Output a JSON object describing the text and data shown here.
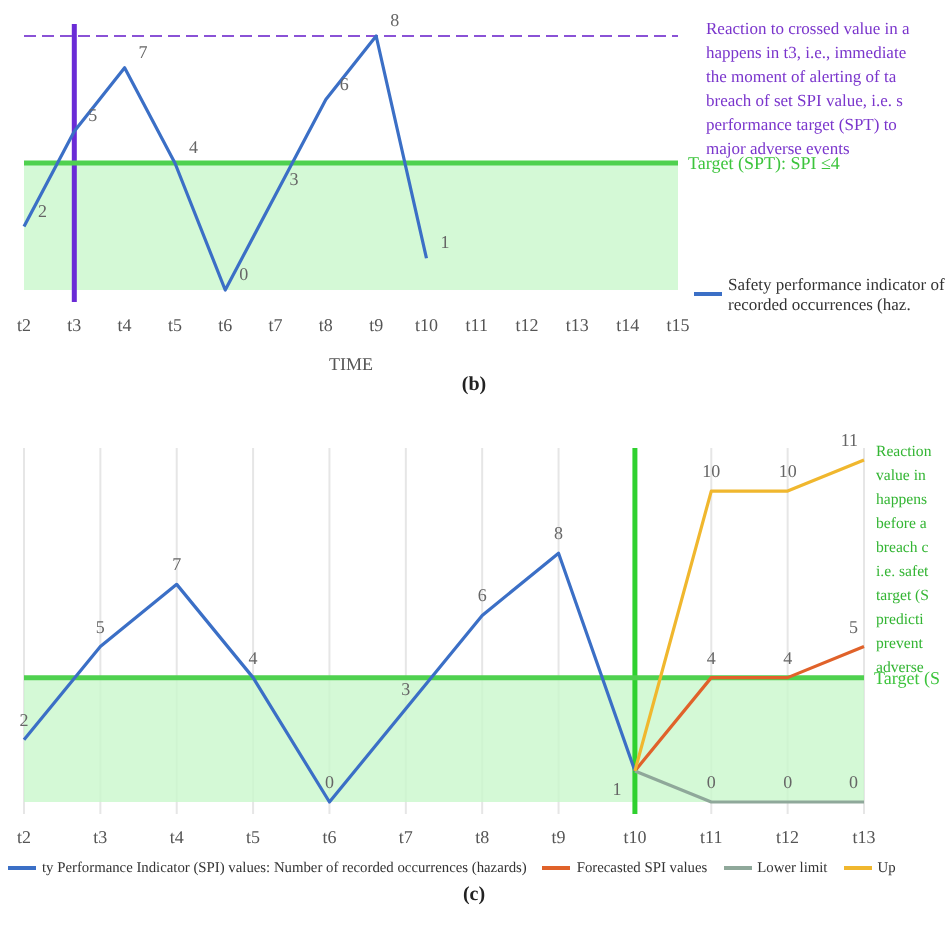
{
  "chart_data": [
    {
      "type": "line",
      "title": "(b)",
      "xlabel": "TIME",
      "categories": [
        "t2",
        "t3",
        "t4",
        "t5",
        "t6",
        "t7",
        "t8",
        "t9",
        "t10",
        "t11",
        "t12",
        "t13",
        "t14",
        "t15"
      ],
      "series": [
        {
          "name": "Safety performance indicator of recorded occurrences (haz.",
          "color": "#3b6fc6",
          "values": [
            2,
            5,
            7,
            4,
            0,
            3,
            6,
            8,
            1,
            null,
            null,
            null,
            null,
            null
          ]
        }
      ],
      "data_labels": true,
      "legend": "right",
      "ref_lines": [
        {
          "axis": "x",
          "value": "t3",
          "color": "#6a2bd6"
        },
        {
          "axis": "y",
          "value": 4,
          "label": "Target (SPT): SPI ≤4",
          "color": "#4fd14f"
        },
        {
          "axis": "y",
          "value": 8,
          "color": "#8a52d6",
          "line_style": "dashed"
        }
      ],
      "bands": [
        {
          "axis": "y",
          "from": 0,
          "to": 4,
          "color": "#c9f7cc"
        }
      ],
      "annotations": [
        "Reaction to crossed value in a",
        "happens in t3, i.e., immediate",
        "the moment of alerting of ta",
        "breach of set SPI value, i.e. s",
        "performance target (SPT) to",
        "major adverse events"
      ]
    },
    {
      "type": "line",
      "title": "(c)",
      "categories": [
        "t2",
        "t3",
        "t4",
        "t5",
        "t6",
        "t7",
        "t8",
        "t9",
        "t10",
        "t11",
        "t12",
        "t13"
      ],
      "series": [
        {
          "name": "ty Performance Indicator (SPI) values: Number of recorded occurrences (hazards)",
          "color": "#3b6fc6",
          "values": [
            2,
            5,
            7,
            4,
            0,
            3,
            6,
            8,
            1,
            null,
            null,
            null
          ]
        },
        {
          "name": "Forecasted SPI values",
          "color": "#e0622a",
          "values": [
            null,
            null,
            null,
            null,
            null,
            null,
            null,
            null,
            1,
            4,
            4,
            5
          ],
          "value_labels": [
            null,
            null,
            null,
            null,
            null,
            null,
            null,
            null,
            null,
            "4",
            "4",
            "5"
          ]
        },
        {
          "name": "Lower limit",
          "color": "#8fa89a",
          "values": [
            null,
            null,
            null,
            null,
            null,
            null,
            null,
            null,
            1,
            0,
            0,
            0
          ],
          "value_labels": [
            null,
            null,
            null,
            null,
            null,
            null,
            null,
            null,
            null,
            "0",
            "0",
            "0"
          ]
        },
        {
          "name": "Up",
          "color": "#f0b72e",
          "values": [
            null,
            null,
            null,
            null,
            null,
            null,
            null,
            null,
            1,
            10,
            10,
            11
          ],
          "value_labels": [
            null,
            null,
            null,
            null,
            null,
            null,
            null,
            null,
            null,
            "10",
            "10",
            "11"
          ]
        }
      ],
      "data_labels": true,
      "legend": "bottom",
      "grid": "x",
      "ref_lines": [
        {
          "axis": "x",
          "value": "t10",
          "color": "#2fd12f"
        },
        {
          "axis": "y",
          "value": 4,
          "label": "Target (S",
          "color": "#4fd14f"
        }
      ],
      "bands": [
        {
          "axis": "y",
          "from": 0,
          "to": 4,
          "color": "#c9f7cc"
        }
      ],
      "annotations": [
        "Reaction",
        "value in",
        "happens",
        "before a",
        "breach c",
        "i.e. safet",
        "target (S",
        "predicti",
        "prevent",
        "adverse"
      ]
    }
  ]
}
